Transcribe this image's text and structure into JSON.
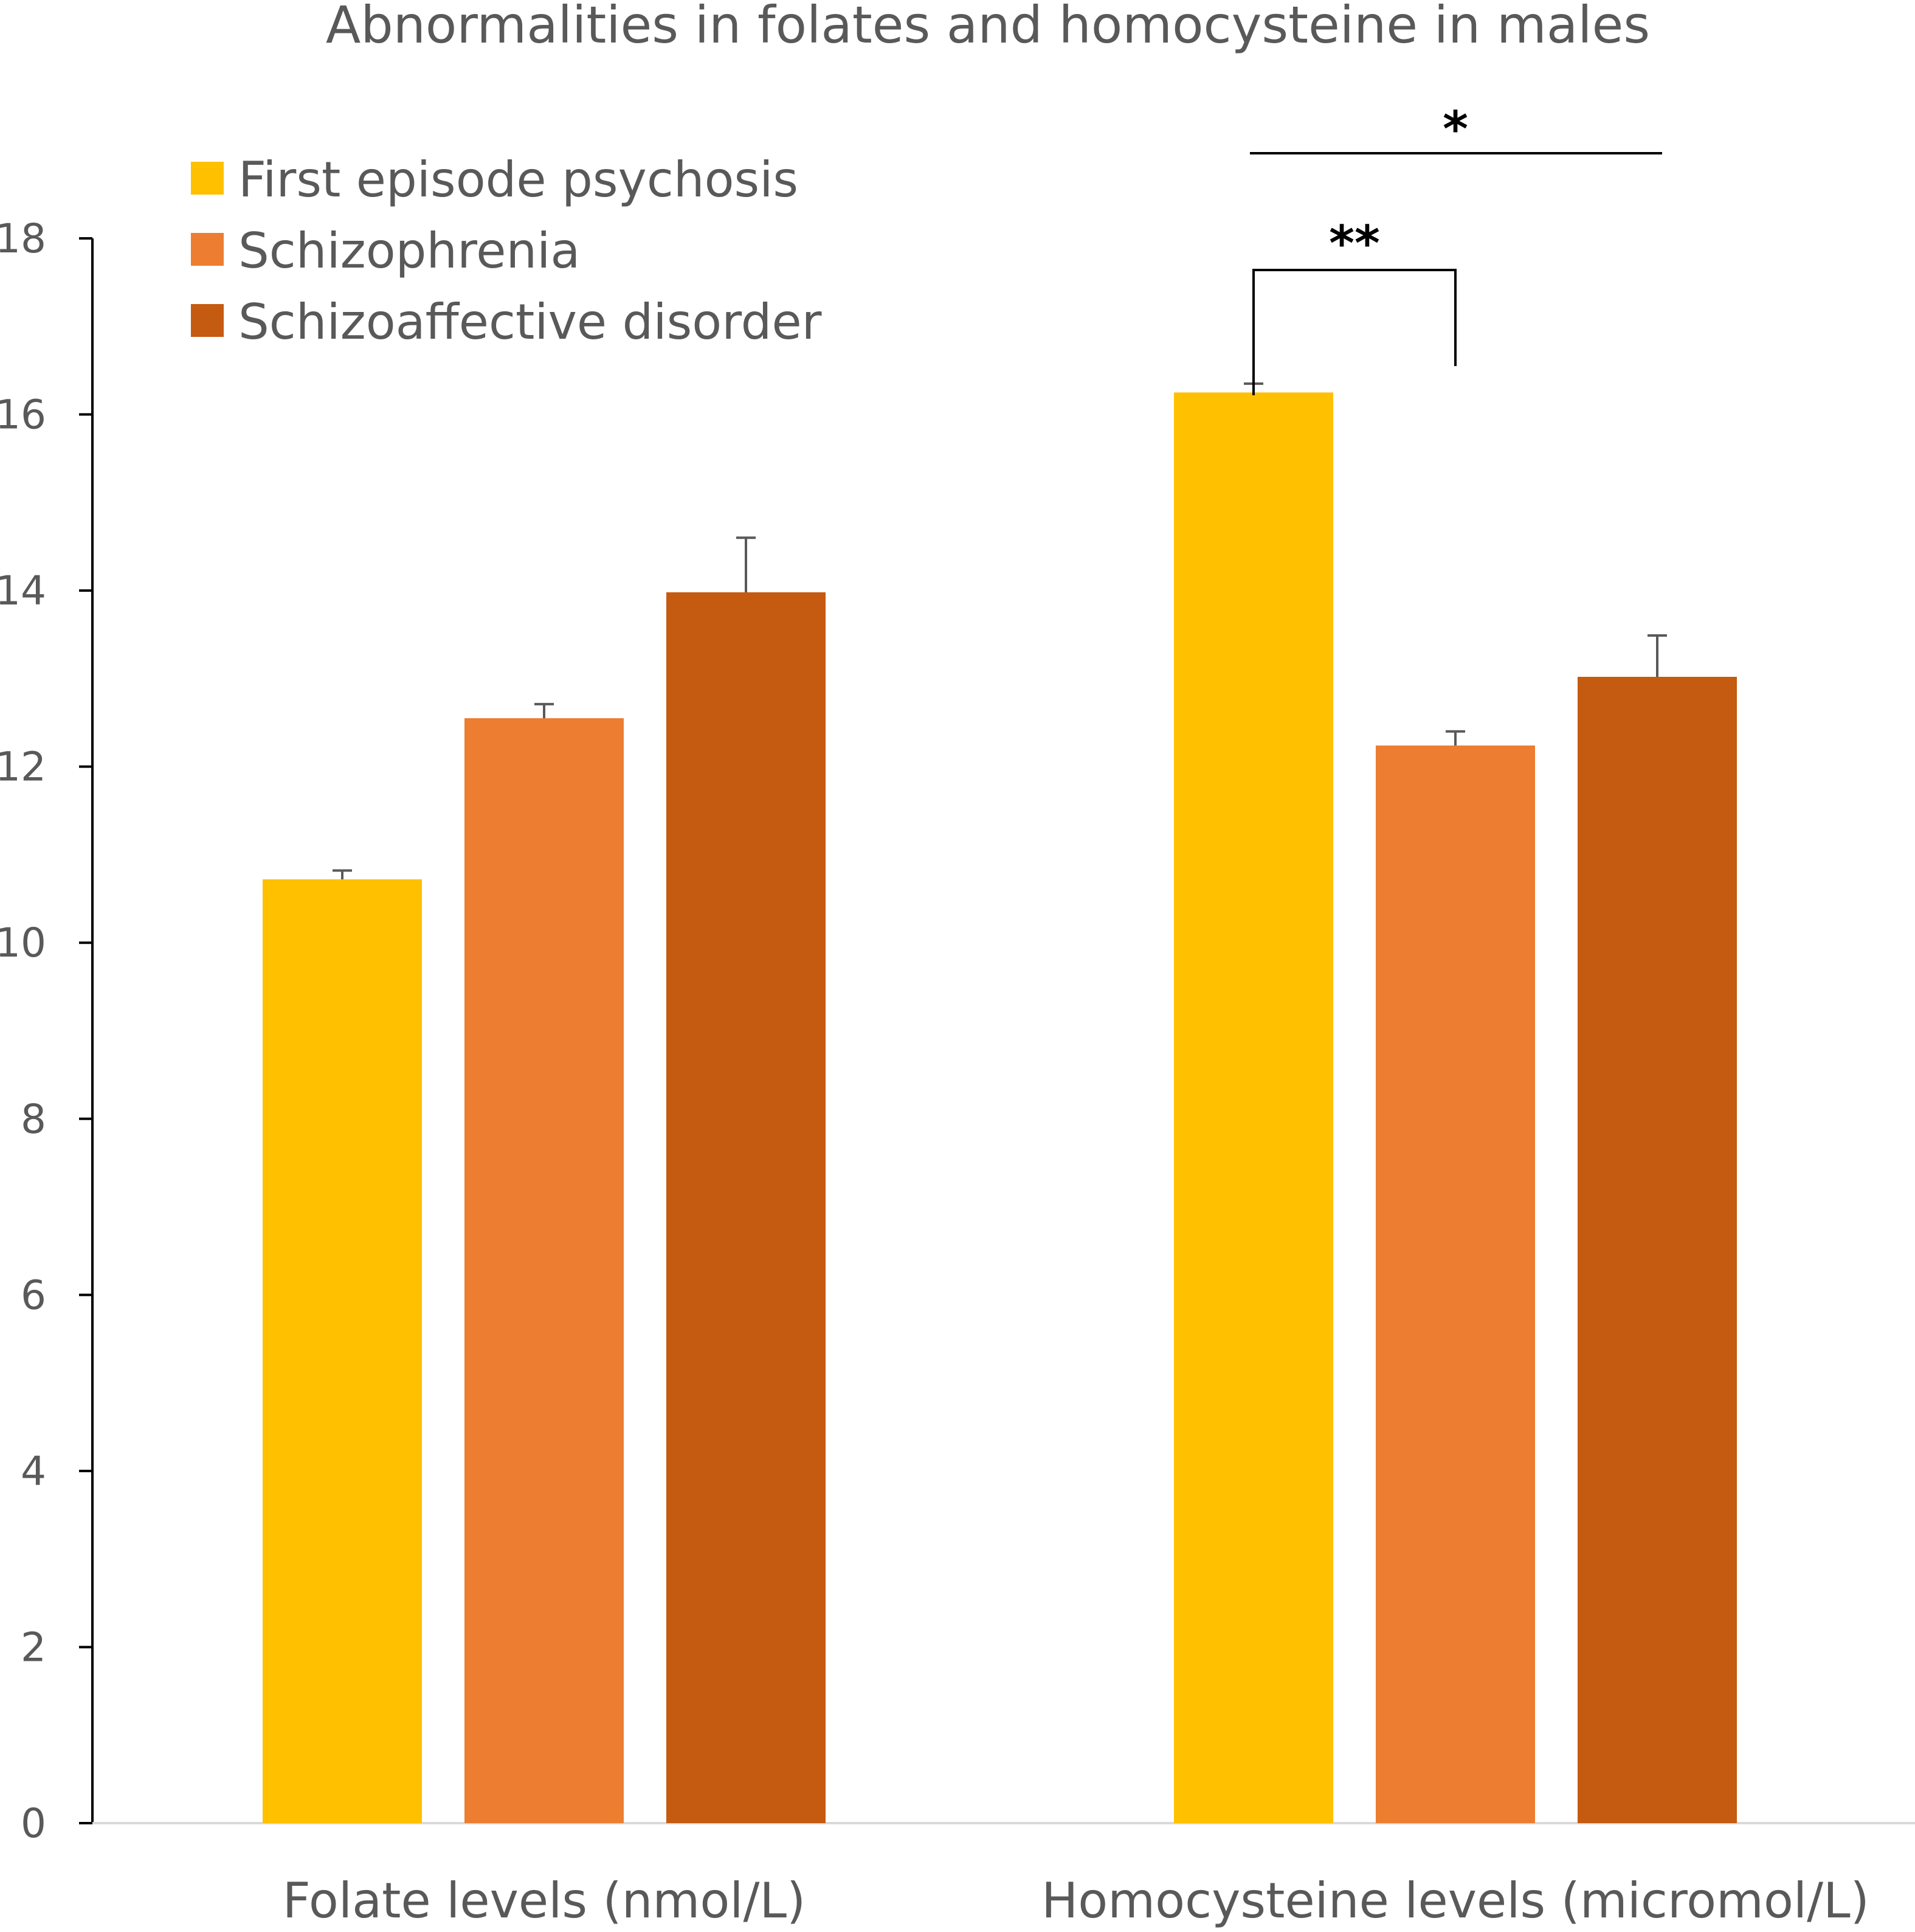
{
  "chart_data": {
    "type": "bar",
    "title": "Abnormalities in folates and homocysteine in males",
    "categories": [
      "Folate levels (nmol/L)",
      "Homocysteine levels (micromol/L)"
    ],
    "series": [
      {
        "name": "First episode psychosis",
        "color": "#FFC000",
        "values": [
          10.72,
          16.25
        ],
        "errors": [
          0.1,
          0.1
        ]
      },
      {
        "name": "Schizophrenia",
        "color": "#ED7D31",
        "values": [
          12.55,
          12.24
        ],
        "errors": [
          0.16,
          0.16
        ]
      },
      {
        "name": "Schizoaffective disorder",
        "color": "#C55A11",
        "values": [
          13.98,
          13.02
        ],
        "errors": [
          0.62,
          0.47
        ]
      }
    ],
    "ylim": [
      0,
      18
    ],
    "yticks": [
      0,
      2,
      4,
      6,
      8,
      10,
      12,
      14,
      16,
      18
    ],
    "legend_position": "top-left",
    "grid": false,
    "significance": [
      {
        "category": 1,
        "from_series": 0,
        "to_series": 2,
        "label": "*"
      },
      {
        "category": 1,
        "from_series": 0,
        "to_series": 1,
        "label": "**"
      }
    ]
  }
}
